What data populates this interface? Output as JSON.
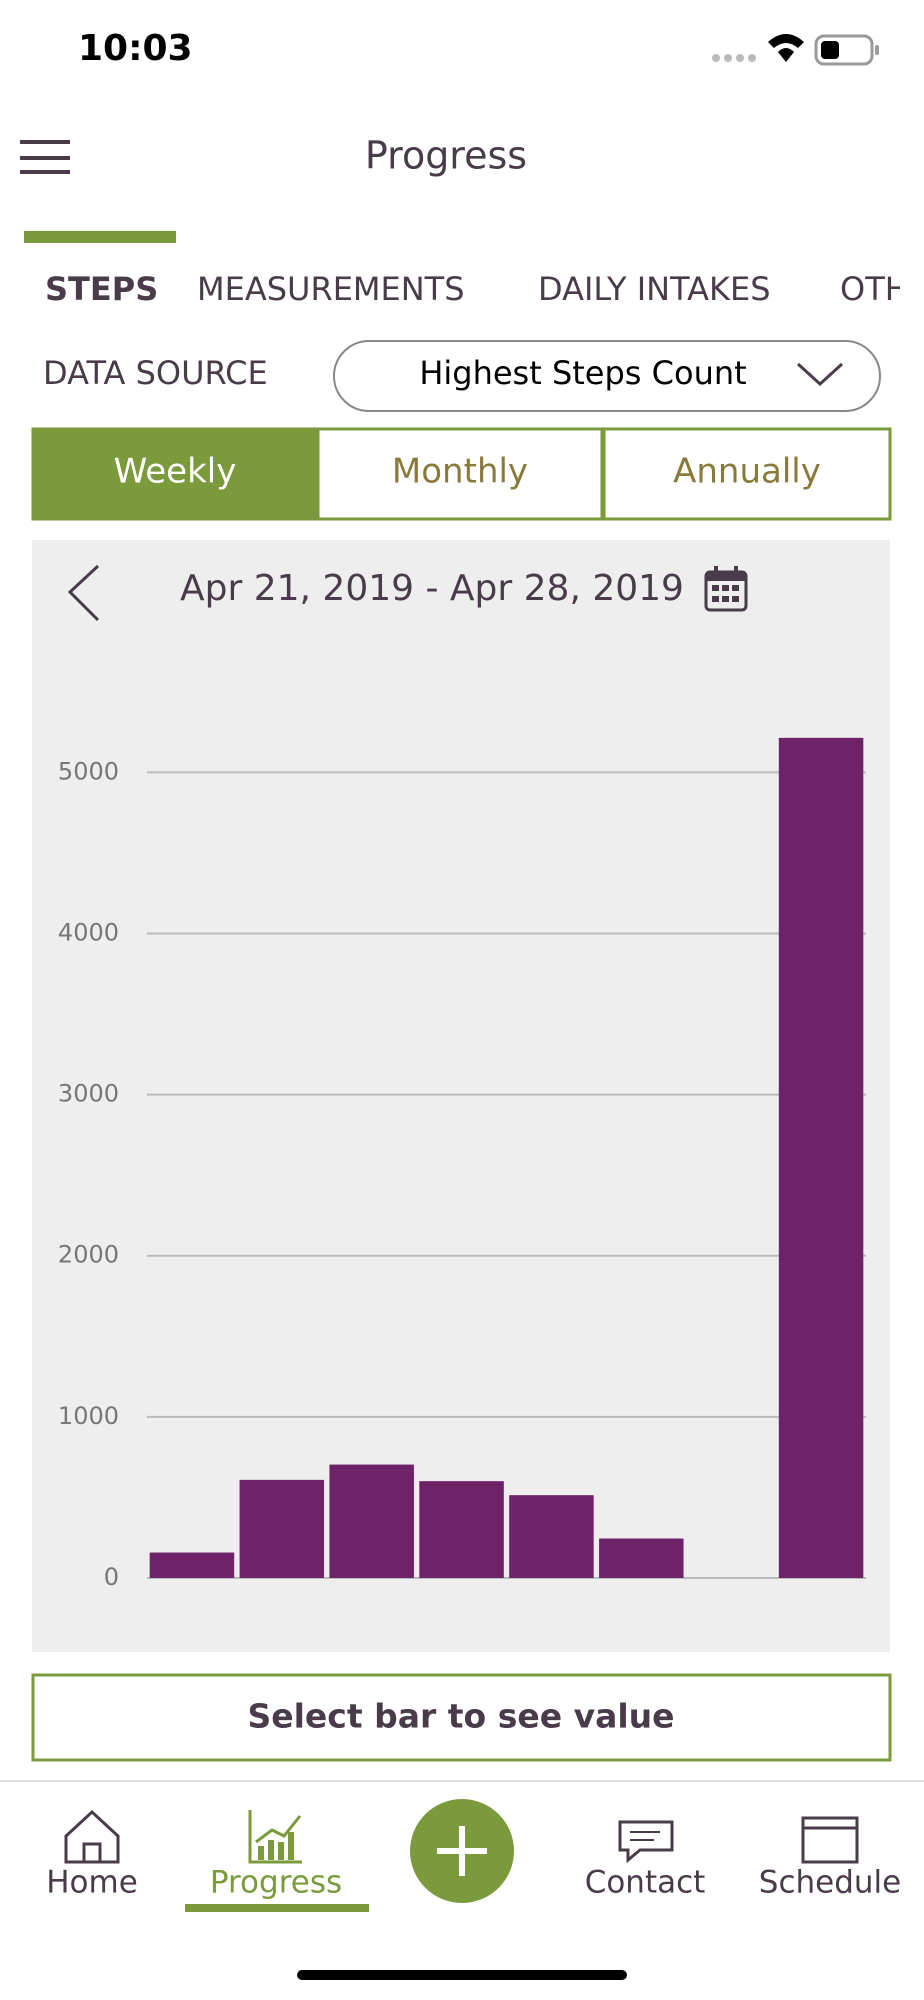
{
  "status": {
    "time": "10:03"
  },
  "header": {
    "title": "Progress"
  },
  "tabs": [
    "STEPS",
    "MEASUREMENTS",
    "DAILY INTAKES",
    "OTH"
  ],
  "data_source": {
    "label": "DATA SOURCE",
    "value": "Highest Steps Count"
  },
  "periods": [
    "Weekly",
    "Monthly",
    "Annually"
  ],
  "date_range": "Apr 21, 2019 - Apr 28, 2019",
  "chart_data": {
    "type": "bar",
    "categories": [
      null,
      null,
      null,
      null,
      null,
      null,
      null,
      null
    ],
    "values": [
      158,
      609,
      704,
      601,
      514,
      245,
      0,
      5214
    ],
    "color": "#6e2268",
    "ylim": [
      0,
      5300
    ],
    "yticks": [
      0,
      1000,
      2000,
      3000,
      4000,
      5000
    ],
    "grid": true
  },
  "select_hint": "Select bar to see value",
  "nav": [
    "Home",
    "Progress",
    "Contact",
    "Schedule"
  ]
}
